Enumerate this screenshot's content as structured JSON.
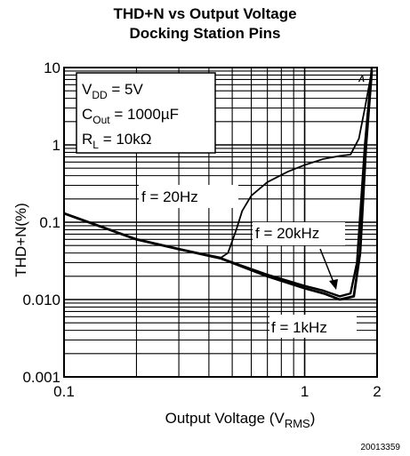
{
  "chart_data": {
    "type": "line",
    "title": "THD+N vs Output Voltage",
    "subtitle": "Docking Station Pins",
    "xlabel": "Output Voltage (VRMS)",
    "xlabel_main": "Output Voltage (V",
    "xlabel_sub": "RMS",
    "xlabel_close": ")",
    "ylabel": "THD+N(%)",
    "xscale": "log",
    "yscale": "log",
    "xlim": [
      0.1,
      2
    ],
    "ylim": [
      0.001,
      10
    ],
    "grid": true,
    "x_tick_labels": [
      {
        "value": 0.1,
        "label": "0.1"
      },
      {
        "value": 1,
        "label": "1"
      },
      {
        "value": 2,
        "label": "2"
      }
    ],
    "y_tick_labels": [
      {
        "value": 10,
        "label": "10"
      },
      {
        "value": 1,
        "label": "1"
      },
      {
        "value": 0.1,
        "label": "0.1"
      },
      {
        "value": 0.01,
        "label": "0.010"
      },
      {
        "value": 0.001,
        "label": "0.001"
      }
    ],
    "conditions": {
      "vdd_main": "V",
      "vdd_sub": "DD",
      "vdd_val": " = 5V",
      "cout_main": "C",
      "cout_sub": "Out",
      "cout_val": " = 1000µF",
      "rl_main": "R",
      "rl_sub": "L",
      "rl_val": "  =  10kΩ"
    },
    "corner_mark": "A",
    "series": [
      {
        "name": "f = 20Hz",
        "x": [
          0.1,
          0.2,
          0.3,
          0.45,
          0.48,
          0.52,
          0.55,
          0.6,
          0.7,
          0.85,
          1.0,
          1.2,
          1.4,
          1.55,
          1.68,
          1.78,
          1.9
        ],
        "y": [
          0.13,
          0.06,
          0.045,
          0.035,
          0.04,
          0.08,
          0.14,
          0.22,
          0.33,
          0.45,
          0.55,
          0.66,
          0.72,
          0.75,
          1.2,
          3.0,
          9.0
        ]
      },
      {
        "name": "f = 20kHz",
        "x": [
          0.1,
          0.2,
          0.3,
          0.45,
          0.7,
          1.0,
          1.2,
          1.4,
          1.55,
          1.65,
          1.78,
          1.9
        ],
        "y": [
          0.13,
          0.06,
          0.045,
          0.034,
          0.021,
          0.015,
          0.013,
          0.011,
          0.012,
          0.03,
          1.0,
          10.0
        ]
      },
      {
        "name": "f = 1kHz",
        "x": [
          0.1,
          0.2,
          0.3,
          0.45,
          0.7,
          1.0,
          1.2,
          1.4,
          1.6,
          1.7,
          1.8,
          1.9
        ],
        "y": [
          0.13,
          0.06,
          0.045,
          0.034,
          0.02,
          0.014,
          0.012,
          0.01,
          0.011,
          0.04,
          1.0,
          9.0
        ]
      }
    ],
    "annotations": [
      "f = 20Hz",
      "f = 20kHz",
      "f = 1kHz"
    ]
  },
  "figure_id": "20013359"
}
